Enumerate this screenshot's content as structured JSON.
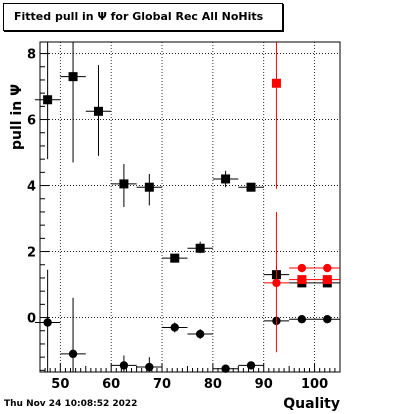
{
  "title": "Fitted pull in  Ψ  for Global Rec All NoHits",
  "footer_date": "Thu Nov 24 10:08:52 2022",
  "chart_data": {
    "type": "scatter",
    "title": "Fitted pull in  Ψ  for Global Rec All NoHits",
    "xlabel": "Quality",
    "ylabel": "pull in  Ψ",
    "xlim": [
      46,
      105
    ],
    "ylim": [
      -1.65,
      8.35
    ],
    "x_ticks": [
      50,
      60,
      70,
      80,
      90,
      100
    ],
    "y_ticks": [
      0,
      2,
      4,
      6,
      8
    ],
    "grid": true,
    "series": [
      {
        "marker": "square",
        "color": "#000000",
        "points": [
          {
            "x": 47.5,
            "y": 6.6,
            "xerr": 2.5,
            "yerr_lo": 1.8,
            "yerr_hi": 1.8
          },
          {
            "x": 52.5,
            "y": 7.3,
            "xerr": 2.5,
            "yerr_lo": 2.6,
            "yerr_hi": 1.1
          },
          {
            "x": 57.5,
            "y": 6.25,
            "xerr": 2.5,
            "yerr_lo": 1.35,
            "yerr_hi": 1.4
          },
          {
            "x": 62.5,
            "y": 4.05,
            "xerr": 2.5,
            "yerr_lo": 0.7,
            "yerr_hi": 0.6
          },
          {
            "x": 67.5,
            "y": 3.95,
            "xerr": 2.5,
            "yerr_lo": 0.55,
            "yerr_hi": 0.4
          },
          {
            "x": 72.5,
            "y": 1.8,
            "xerr": 2.5,
            "yerr_lo": 0.1,
            "yerr_hi": 0.1
          },
          {
            "x": 77.5,
            "y": 2.1,
            "xerr": 2.5,
            "yerr_lo": 0.15,
            "yerr_hi": 0.2
          },
          {
            "x": 82.5,
            "y": 4.2,
            "xerr": 2.5,
            "yerr_lo": 0.25,
            "yerr_hi": 0.25
          },
          {
            "x": 87.5,
            "y": 3.95,
            "xerr": 2.5,
            "yerr_lo": 0.1,
            "yerr_hi": 0.1
          },
          {
            "x": 92.5,
            "y": 1.3,
            "xerr": 2.5,
            "yerr_lo": 0.25,
            "yerr_hi": 0.25
          },
          {
            "x": 97.5,
            "y": 1.05,
            "xerr": 2.5,
            "yerr_lo": 0.05,
            "yerr_hi": 0.05
          },
          {
            "x": 102.5,
            "y": 1.05,
            "xerr": 2.5,
            "yerr_lo": 0.05,
            "yerr_hi": 0.05
          }
        ]
      },
      {
        "marker": "circle",
        "color": "#000000",
        "points": [
          {
            "x": 47.5,
            "y": -0.15,
            "xerr": 2.5,
            "yerr_lo": 1.6,
            "yerr_hi": 1.6
          },
          {
            "x": 52.5,
            "y": -1.1,
            "xerr": 2.5,
            "yerr_lo": 1.2,
            "yerr_hi": 1.7
          },
          {
            "x": 62.5,
            "y": -1.45,
            "xerr": 2.5,
            "yerr_lo": 0.3,
            "yerr_hi": 0.3
          },
          {
            "x": 67.5,
            "y": -1.5,
            "xerr": 2.5,
            "yerr_lo": 0.3,
            "yerr_hi": 0.3
          },
          {
            "x": 72.5,
            "y": -0.3,
            "xerr": 2.5,
            "yerr_lo": 0.15,
            "yerr_hi": 0.15
          },
          {
            "x": 77.5,
            "y": -0.5,
            "xerr": 2.5,
            "yerr_lo": 0.15,
            "yerr_hi": 0.15
          },
          {
            "x": 82.5,
            "y": -1.55,
            "xerr": 2.5,
            "yerr_lo": 0.1,
            "yerr_hi": 0.1
          },
          {
            "x": 87.5,
            "y": -1.45,
            "xerr": 2.5,
            "yerr_lo": 0.05,
            "yerr_hi": 0.05
          },
          {
            "x": 92.5,
            "y": -0.1,
            "xerr": 2.5,
            "yerr_lo": 0.05,
            "yerr_hi": 0.05
          },
          {
            "x": 97.5,
            "y": -0.05,
            "xerr": 2.5,
            "yerr_lo": 0.03,
            "yerr_hi": 0.03
          },
          {
            "x": 102.5,
            "y": -0.05,
            "xerr": 2.5,
            "yerr_lo": 0.03,
            "yerr_hi": 0.03
          }
        ]
      },
      {
        "marker": "square",
        "color": "#ff0000",
        "points": [
          {
            "x": 92.5,
            "y": 7.1,
            "xerr": 0,
            "yerr_lo": 3.2,
            "yerr_hi": 1.4
          },
          {
            "x": 97.5,
            "y": 1.15,
            "xerr": 2.5,
            "yerr_lo": 0.05,
            "yerr_hi": 0.05
          },
          {
            "x": 102.5,
            "y": 1.15,
            "xerr": 2.5,
            "yerr_lo": 0.05,
            "yerr_hi": 0.05
          }
        ]
      },
      {
        "marker": "circle",
        "color": "#ff0000",
        "points": [
          {
            "x": 92.5,
            "y": 1.05,
            "xerr": 2.5,
            "yerr_lo": 2.1,
            "yerr_hi": 2.15
          },
          {
            "x": 97.5,
            "y": 1.5,
            "xerr": 2.5,
            "yerr_lo": 0.05,
            "yerr_hi": 0.05
          },
          {
            "x": 102.5,
            "y": 1.5,
            "xerr": 2.5,
            "yerr_lo": 0.05,
            "yerr_hi": 0.05
          }
        ]
      }
    ]
  }
}
